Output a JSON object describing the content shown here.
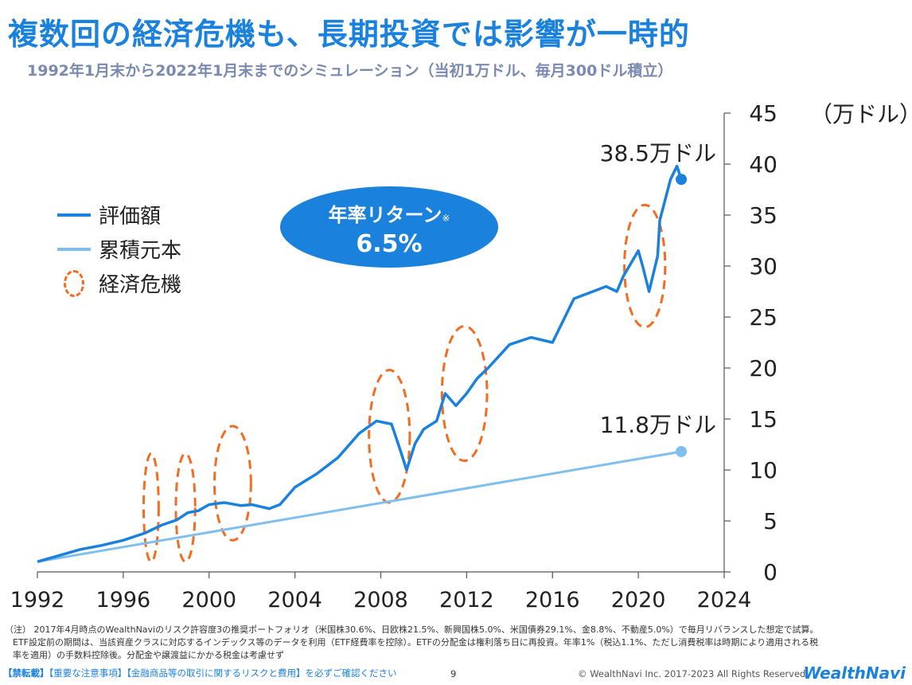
{
  "title": "複数回の経済危機も、長期投資では影響が一時的",
  "subtitle": "1992年1月末から2022年1月末までのシミュレーション（当初1万ドル、毎月300ドル積立）",
  "colors": {
    "accent": "#1a82dd",
    "principal": "#7fbfee",
    "crisis": "#f26d21",
    "subtitle": "#7a8ab0"
  },
  "legend": {
    "value_label": "評価額",
    "principal_label": "累積元本",
    "crisis_label": "経済危機"
  },
  "badge": {
    "line1": "年率リターン",
    "mark": "※",
    "value": "6.5%"
  },
  "chart_data": {
    "type": "line",
    "unit_label": "（万ドル）",
    "xlim": [
      1992,
      2024
    ],
    "ylim": [
      0,
      45
    ],
    "x_ticks": [
      "1992",
      "1996",
      "2000",
      "2004",
      "2008",
      "2012",
      "2016",
      "2020",
      "2024"
    ],
    "y_ticks": [
      "0",
      "5",
      "10",
      "15",
      "20",
      "25",
      "30",
      "35",
      "40",
      "45"
    ],
    "series": [
      {
        "name": "評価額",
        "x": [
          1992.0,
          1993.0,
          1994.0,
          1995.0,
          1996.0,
          1997.0,
          1997.8,
          1998.5,
          1999.0,
          1999.5,
          2000.0,
          2000.7,
          2001.5,
          2002.0,
          2002.8,
          2003.3,
          2004.0,
          2005.0,
          2006.0,
          2007.0,
          2007.8,
          2008.5,
          2008.9,
          2009.2,
          2009.6,
          2010.0,
          2010.6,
          2011.0,
          2011.5,
          2012.0,
          2012.5,
          2013.0,
          2014.0,
          2015.0,
          2016.0,
          2017.0,
          2018.0,
          2018.5,
          2019.0,
          2019.3,
          2020.0,
          2020.2,
          2020.5,
          2020.9,
          2021.0,
          2021.5,
          2021.8,
          2022.0
        ],
        "values": [
          1.0,
          1.6,
          2.2,
          2.6,
          3.1,
          3.8,
          4.6,
          5.1,
          5.8,
          6.0,
          6.6,
          6.8,
          6.5,
          6.6,
          6.2,
          6.6,
          8.3,
          9.6,
          11.2,
          13.6,
          14.8,
          14.5,
          12.0,
          10.0,
          12.6,
          14.0,
          14.8,
          17.5,
          16.3,
          17.5,
          19.0,
          20.0,
          22.3,
          23.0,
          22.5,
          26.8,
          27.6,
          28.0,
          27.5,
          29.0,
          31.5,
          30.0,
          27.5,
          31.0,
          34.5,
          38.5,
          39.8,
          38.5
        ]
      },
      {
        "name": "累積元本",
        "x": [
          1992,
          2022
        ],
        "values": [
          1.0,
          11.8
        ]
      }
    ],
    "annotations": [
      {
        "text": "38.5万ドル",
        "x": 2022,
        "y": 38.5
      },
      {
        "text": "11.8万ドル",
        "x": 2022,
        "y": 11.8
      }
    ],
    "crises": [
      {
        "cx": 1997.3,
        "cy": 6.3,
        "rx": 0.35,
        "ry": 5.3
      },
      {
        "cx": 1998.9,
        "cy": 6.3,
        "rx": 0.45,
        "ry": 5.3
      },
      {
        "cx": 2001.1,
        "cy": 8.7,
        "rx": 0.85,
        "ry": 5.6
      },
      {
        "cx": 2008.4,
        "cy": 13.3,
        "rx": 0.95,
        "ry": 6.5
      },
      {
        "cx": 2011.9,
        "cy": 17.5,
        "rx": 1.05,
        "ry": 6.6
      },
      {
        "cx": 2020.3,
        "cy": 30.0,
        "rx": 0.95,
        "ry": 6.0
      }
    ]
  },
  "footnote": {
    "line1": "（注） 2017年4月時点のWealthNaviのリスク許容度3の推奨ポートフォリオ（米国株30.6%、日欧株21.5%、新興国株5.0%、米国債券29.1%、金8.8%、不動産5.0%）で毎月リバランスした想定で試算。",
    "line2": "ETF設定前の期間は、当該資産クラスに対応するインデックス等のデータを利用（ETF経費率を控除）。ETFの分配金は権利落ち日に再投資。年率1%（税込1.1%、ただし消費税率は時期により適用される税",
    "line3": "率を適用）の手数料控除後。分配金や譲渡益にかかる税金は考慮せず"
  },
  "footer": {
    "warning": "【禁転載】",
    "notice": "【重要な注意事項】【金融商品等の取引に関するリスクと費用】を必ずご確認ください",
    "page": "9",
    "copyright": "© WealthNavi Inc. 2017-2023 All Rights Reserved.",
    "brand": "WealthNavi"
  }
}
